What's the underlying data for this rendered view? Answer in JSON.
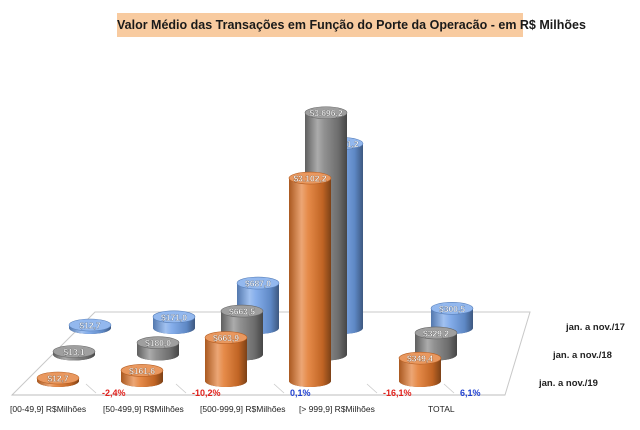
{
  "chart_data": {
    "type": "bar",
    "title": "Valor Médio das Transações em Função do Porte da Operacão - em R$ Milhões",
    "categories": [
      "[00-49,9] R$Milhões",
      "[50-499,9] R$Milhões",
      "[500-999,9] R$Milhões",
      "[> 999,9] R$Milhões",
      "TOTAL"
    ],
    "series": [
      {
        "name": "jan. a nov./17",
        "color": "#6fa0e8",
        "values": [
          12.7,
          171.0,
          687.0,
          2821.2,
          300.5
        ],
        "labels": [
          "$12,7",
          "$171,0",
          "$687,0",
          "$2.821,2",
          "$300,5"
        ]
      },
      {
        "name": "jan. a nov./18",
        "color": "#7f7f7f",
        "values": [
          13.1,
          180.0,
          663.5,
          3696.2,
          329.2
        ],
        "labels": [
          "$13,1",
          "$180,0",
          "$663,5",
          "$3.696,2",
          "$329,2"
        ]
      },
      {
        "name": "jan. a nov./19",
        "color": "#e2762a",
        "values": [
          12.7,
          161.6,
          663.9,
          3102.2,
          349.4
        ],
        "labels": [
          "$12,7",
          "$161,6",
          "$663,9",
          "$3.102,2",
          "$349,4"
        ]
      }
    ],
    "variations": [
      "-2,4%",
      "-10,2%",
      "0,1%",
      "-16,1%",
      "6,1%"
    ],
    "variation_colors": [
      "#e0201b",
      "#e0201b",
      "#1f3fcf",
      "#e0201b",
      "#1f3fcf"
    ],
    "ylim": [
      0,
      3700
    ],
    "grid": false,
    "legend": "right, row labels on floor"
  }
}
